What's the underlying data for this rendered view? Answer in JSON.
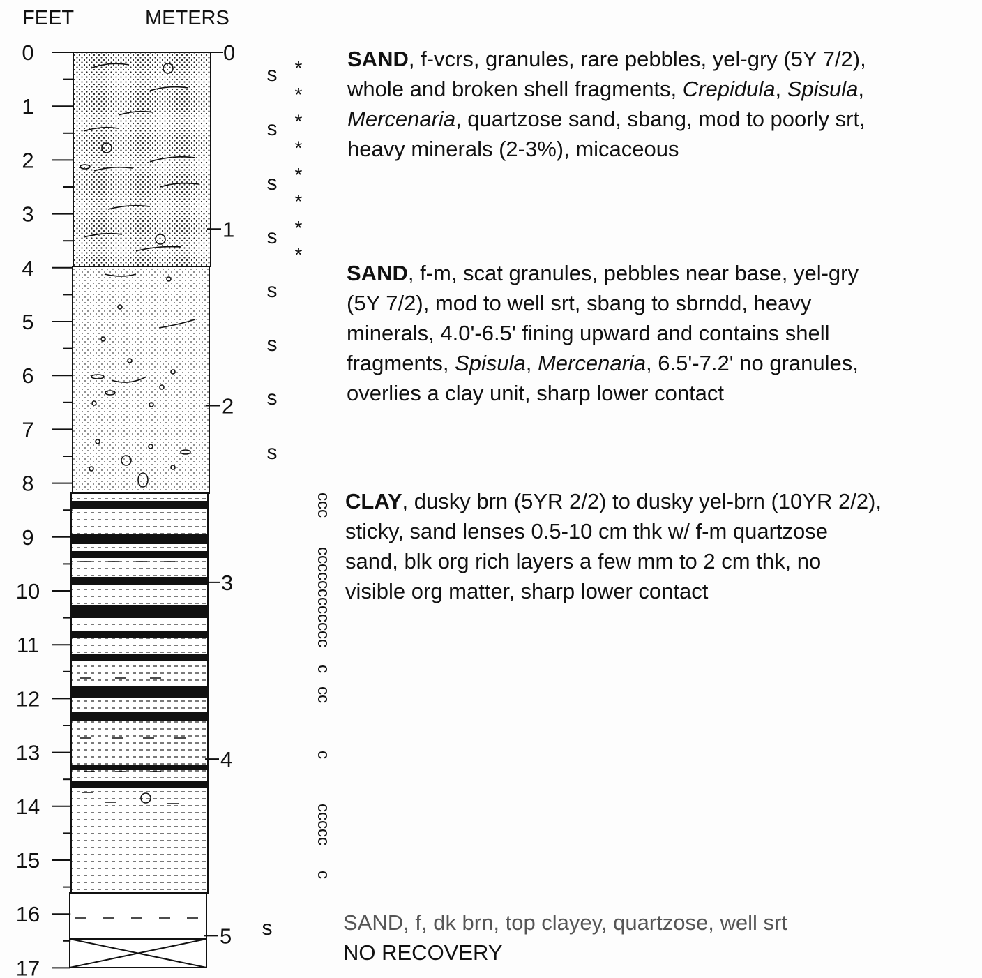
{
  "header": {
    "feet": "FEET",
    "meters": "METERS"
  },
  "feet_ticks": [
    "0",
    "1",
    "2",
    "3",
    "4",
    "5",
    "6",
    "7",
    "8",
    "9",
    "10",
    "11",
    "12",
    "13",
    "14",
    "15",
    "16",
    "17"
  ],
  "meter_ticks": [
    "0",
    "1",
    "2",
    "3",
    "4",
    "5"
  ],
  "samples": [
    "s",
    "s",
    "s",
    "s",
    "s",
    "s",
    "s",
    "s",
    "s"
  ],
  "shells": [
    "*",
    "*",
    "*",
    "*",
    "*",
    "*",
    "*",
    "*"
  ],
  "clay_marks": [
    "ccc",
    "cccccccccccc",
    "c",
    "cc",
    "c",
    "ccccc",
    "c"
  ],
  "units": [
    {
      "lines": [
        [
          {
            "text": "SAND",
            "style": "bold"
          },
          ", f-vcrs, granules, rare pebbles, yel-gry (5Y 7/2),"
        ],
        [
          "whole and broken shell fragments, ",
          {
            "text": "Crepidula",
            "style": "italic"
          },
          ", ",
          {
            "text": "Spisula",
            "style": "italic"
          },
          ","
        ],
        [
          {
            "text": "Mercenaria",
            "style": "italic"
          },
          ", quartzose sand, sbang, mod to poorly srt,"
        ],
        [
          "heavy minerals (2-3%), micaceous"
        ]
      ]
    },
    {
      "lines": [
        [
          {
            "text": "SAND",
            "style": "bold"
          },
          ", f-m, scat granules, pebbles near base, yel-gry"
        ],
        [
          "(5Y 7/2), mod to well srt, sbang to sbrndd, heavy"
        ],
        [
          "minerals, 4.0'-6.5' fining upward and contains shell"
        ],
        [
          "fragments, ",
          {
            "text": "Spisula",
            "style": "italic"
          },
          ", ",
          {
            "text": "Mercenaria",
            "style": "italic"
          },
          ", 6.5'-7.2' no granules,"
        ],
        [
          "overlies a clay unit, sharp lower contact"
        ]
      ]
    },
    {
      "lines": [
        [
          {
            "text": "CLAY",
            "style": "bold"
          },
          ", dusky brn (5YR 2/2) to dusky yel-brn (10YR 2/2),"
        ],
        [
          "sticky, sand lenses 0.5-10 cm thk w/ f-m quartzose"
        ],
        [
          "sand, blk org rich layers a few mm to 2 cm thk, no"
        ],
        [
          "visible org matter, sharp lower contact"
        ]
      ]
    },
    {
      "lines": [
        [
          {
            "text": "SAND",
            "style": "faint"
          },
          {
            "text": ", f, dk brn, top clayey, quartzose, well srt",
            "style": "faint"
          }
        ],
        [
          "NO RECOVERY"
        ]
      ]
    }
  ]
}
